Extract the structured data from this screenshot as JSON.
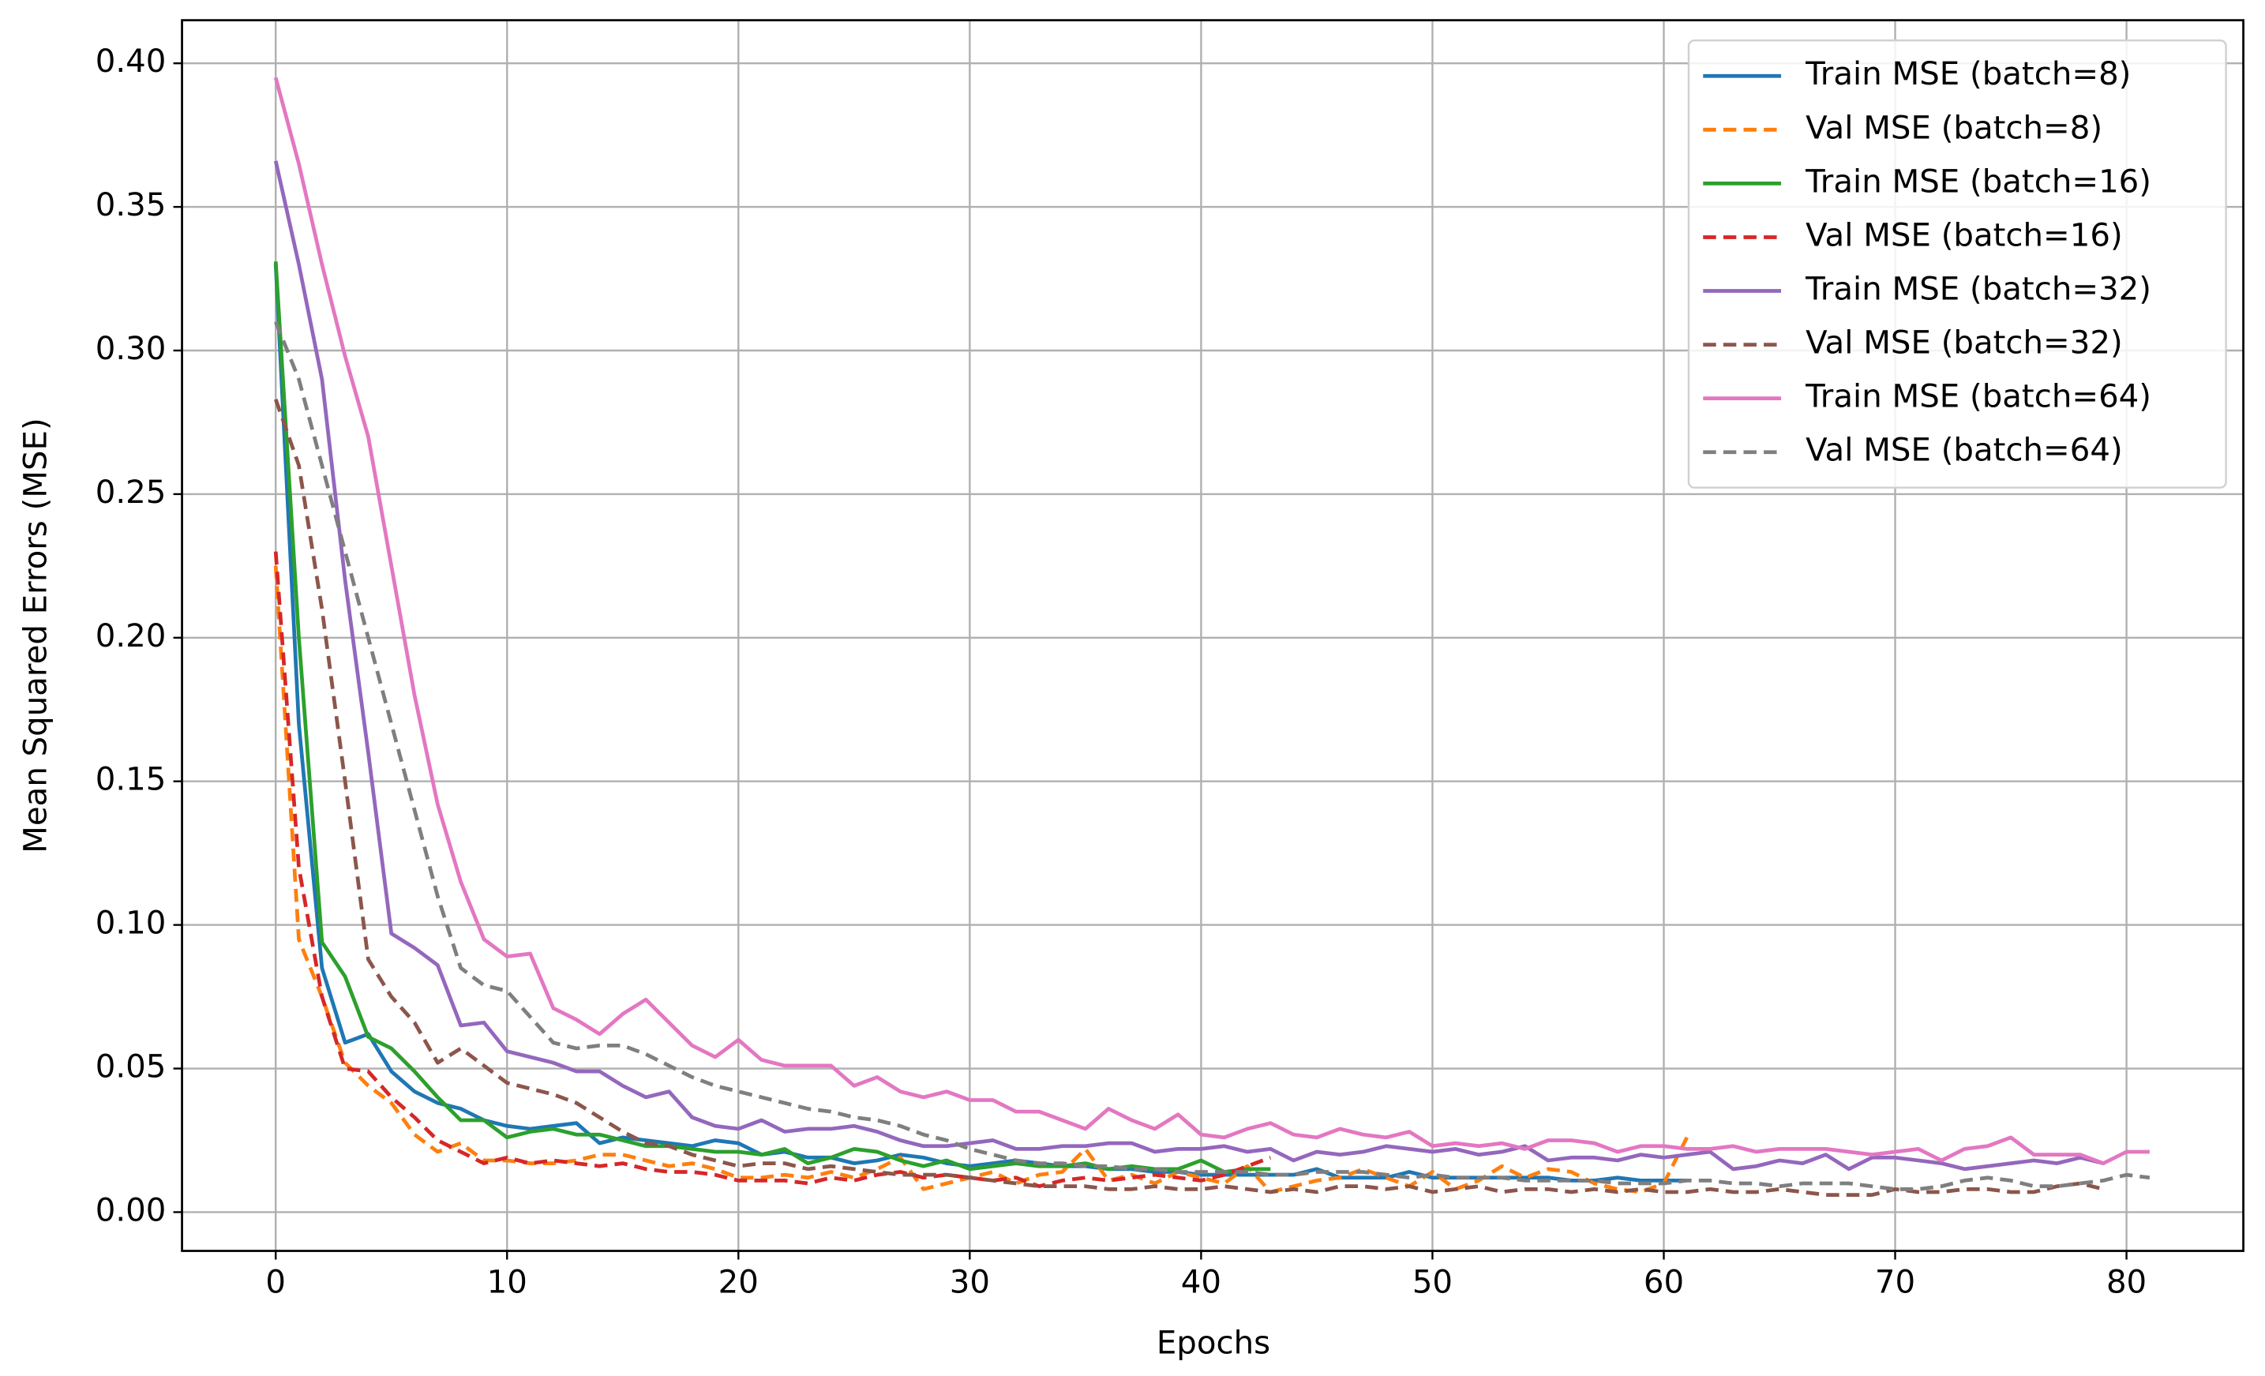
{
  "chart_data": {
    "type": "line",
    "xlabel": "Epochs",
    "ylabel": "Mean Squared Errors (MSE)",
    "xlim": [
      -4.05,
      85.05
    ],
    "ylim": [
      -0.0135,
      0.415
    ],
    "xticks": [
      0,
      10,
      20,
      30,
      40,
      50,
      60,
      70,
      80
    ],
    "yticks": [
      {
        "value": 0,
        "label": "0.00"
      },
      0.05,
      {
        "value": 0.1,
        "label": "0.10"
      },
      0.15,
      {
        "value": 0.2,
        "label": "0.20"
      },
      0.25,
      {
        "value": 0.3,
        "label": "0.30"
      },
      0.35,
      {
        "value": 0.4,
        "label": "0.40"
      }
    ],
    "grid": true,
    "legend": "upper right",
    "series": [
      {
        "name": "Train MSE (batch=8)",
        "color": "#1f77b4",
        "style": "solid",
        "values": [
          0.33,
          0.17,
          0.085,
          0.059,
          0.062,
          0.049,
          0.042,
          0.038,
          0.036,
          0.032,
          0.03,
          0.029,
          0.03,
          0.031,
          0.024,
          0.026,
          0.025,
          0.024,
          0.023,
          0.025,
          0.024,
          0.02,
          0.021,
          0.019,
          0.019,
          0.017,
          0.018,
          0.02,
          0.019,
          0.017,
          0.016,
          0.017,
          0.018,
          0.017,
          0.016,
          0.016,
          0.015,
          0.015,
          0.014,
          0.014,
          0.013,
          0.013,
          0.013,
          0.013,
          0.013,
          0.015,
          0.012,
          0.012,
          0.012,
          0.014,
          0.012,
          0.012,
          0.012,
          0.012,
          0.012,
          0.012,
          0.011,
          0.011,
          0.012,
          0.011,
          0.011,
          0.011
        ]
      },
      {
        "name": "Val MSE (batch=8)",
        "color": "#ff7f0e",
        "style": "dashed",
        "values": [
          0.225,
          0.095,
          0.075,
          0.052,
          0.044,
          0.038,
          0.027,
          0.021,
          0.024,
          0.018,
          0.018,
          0.017,
          0.017,
          0.018,
          0.02,
          0.02,
          0.018,
          0.016,
          0.017,
          0.015,
          0.012,
          0.012,
          0.013,
          0.012,
          0.014,
          0.012,
          0.015,
          0.019,
          0.008,
          0.01,
          0.012,
          0.014,
          0.01,
          0.013,
          0.014,
          0.022,
          0.011,
          0.013,
          0.01,
          0.014,
          0.012,
          0.01,
          0.016,
          0.007,
          0.009,
          0.011,
          0.012,
          0.015,
          0.012,
          0.009,
          0.014,
          0.008,
          0.011,
          0.016,
          0.012,
          0.015,
          0.014,
          0.01,
          0.008,
          0.007,
          0.01,
          0.026
        ]
      },
      {
        "name": "Train MSE (batch=16)",
        "color": "#2ca02c",
        "style": "solid",
        "values": [
          0.331,
          0.2,
          0.094,
          0.082,
          0.061,
          0.057,
          0.049,
          0.04,
          0.032,
          0.032,
          0.026,
          0.028,
          0.029,
          0.027,
          0.027,
          0.025,
          0.023,
          0.023,
          0.022,
          0.021,
          0.021,
          0.02,
          0.022,
          0.017,
          0.019,
          0.022,
          0.021,
          0.018,
          0.016,
          0.018,
          0.015,
          0.016,
          0.017,
          0.016,
          0.016,
          0.017,
          0.015,
          0.016,
          0.015,
          0.015,
          0.018,
          0.014,
          0.015,
          0.015
        ]
      },
      {
        "name": "Val MSE (batch=16)",
        "color": "#d62728",
        "style": "dashed",
        "values": [
          0.23,
          0.12,
          0.075,
          0.05,
          0.049,
          0.04,
          0.033,
          0.025,
          0.021,
          0.017,
          0.019,
          0.017,
          0.018,
          0.017,
          0.016,
          0.017,
          0.015,
          0.014,
          0.014,
          0.013,
          0.011,
          0.011,
          0.011,
          0.01,
          0.012,
          0.011,
          0.013,
          0.014,
          0.012,
          0.013,
          0.012,
          0.011,
          0.012,
          0.009,
          0.011,
          0.012,
          0.011,
          0.012,
          0.013,
          0.012,
          0.011,
          0.013,
          0.016,
          0.019
        ]
      },
      {
        "name": "Train MSE (batch=32)",
        "color": "#9467bd",
        "style": "solid",
        "values": [
          0.366,
          0.33,
          0.29,
          0.22,
          0.16,
          0.097,
          0.092,
          0.086,
          0.065,
          0.066,
          0.056,
          0.054,
          0.052,
          0.049,
          0.049,
          0.044,
          0.04,
          0.042,
          0.033,
          0.03,
          0.029,
          0.032,
          0.028,
          0.029,
          0.029,
          0.03,
          0.028,
          0.025,
          0.023,
          0.023,
          0.024,
          0.025,
          0.022,
          0.022,
          0.023,
          0.023,
          0.024,
          0.024,
          0.021,
          0.022,
          0.022,
          0.023,
          0.021,
          0.022,
          0.018,
          0.021,
          0.02,
          0.021,
          0.023,
          0.022,
          0.021,
          0.022,
          0.02,
          0.021,
          0.023,
          0.018,
          0.019,
          0.019,
          0.018,
          0.02,
          0.019,
          0.02,
          0.021,
          0.015,
          0.016,
          0.018,
          0.017,
          0.02,
          0.015,
          0.019,
          0.019,
          0.018,
          0.017,
          0.015,
          0.016,
          0.017,
          0.018,
          0.017,
          0.019,
          0.017
        ]
      },
      {
        "name": "Val MSE (batch=32)",
        "color": "#8c564b",
        "style": "dashed",
        "values": [
          0.283,
          0.26,
          0.21,
          0.15,
          0.088,
          0.075,
          0.066,
          0.052,
          0.057,
          0.051,
          0.045,
          0.043,
          0.041,
          0.038,
          0.033,
          0.028,
          0.024,
          0.023,
          0.02,
          0.018,
          0.016,
          0.017,
          0.017,
          0.015,
          0.016,
          0.015,
          0.014,
          0.013,
          0.013,
          0.013,
          0.012,
          0.011,
          0.01,
          0.009,
          0.009,
          0.009,
          0.008,
          0.008,
          0.009,
          0.008,
          0.008,
          0.009,
          0.008,
          0.007,
          0.008,
          0.007,
          0.009,
          0.009,
          0.008,
          0.009,
          0.007,
          0.008,
          0.009,
          0.007,
          0.008,
          0.008,
          0.007,
          0.008,
          0.007,
          0.008,
          0.007,
          0.007,
          0.008,
          0.007,
          0.007,
          0.008,
          0.007,
          0.006,
          0.006,
          0.006,
          0.008,
          0.007,
          0.007,
          0.008,
          0.008,
          0.007,
          0.007,
          0.009,
          0.01,
          0.008
        ]
      },
      {
        "name": "Train MSE (batch=64)",
        "color": "#e377c2",
        "style": "solid",
        "values": [
          0.395,
          0.365,
          0.33,
          0.298,
          0.27,
          0.225,
          0.18,
          0.142,
          0.115,
          0.095,
          0.089,
          0.09,
          0.071,
          0.067,
          0.062,
          0.069,
          0.074,
          0.066,
          0.058,
          0.054,
          0.06,
          0.053,
          0.051,
          0.051,
          0.051,
          0.044,
          0.047,
          0.042,
          0.04,
          0.042,
          0.039,
          0.039,
          0.035,
          0.035,
          0.032,
          0.029,
          0.036,
          0.032,
          0.029,
          0.034,
          0.027,
          0.026,
          0.029,
          0.031,
          0.027,
          0.026,
          0.029,
          0.027,
          0.026,
          0.028,
          0.023,
          0.024,
          0.023,
          0.024,
          0.022,
          0.025,
          0.025,
          0.024,
          0.021,
          0.023,
          0.023,
          0.022,
          0.022,
          0.023,
          0.021,
          0.022,
          0.022,
          0.022,
          0.021,
          0.02,
          0.021,
          0.022,
          0.018,
          0.022,
          0.023,
          0.026,
          0.02,
          0.02,
          0.02,
          0.017,
          0.021,
          0.021
        ]
      },
      {
        "name": "Val MSE (batch=64)",
        "color": "#7f7f7f",
        "style": "dashed",
        "values": [
          0.31,
          0.29,
          0.26,
          0.23,
          0.2,
          0.17,
          0.14,
          0.11,
          0.085,
          0.079,
          0.077,
          0.068,
          0.059,
          0.057,
          0.058,
          0.058,
          0.055,
          0.051,
          0.047,
          0.044,
          0.042,
          0.04,
          0.038,
          0.036,
          0.035,
          0.033,
          0.032,
          0.03,
          0.027,
          0.025,
          0.022,
          0.02,
          0.018,
          0.017,
          0.017,
          0.016,
          0.016,
          0.015,
          0.015,
          0.014,
          0.014,
          0.014,
          0.014,
          0.013,
          0.013,
          0.014,
          0.014,
          0.014,
          0.013,
          0.012,
          0.013,
          0.012,
          0.012,
          0.012,
          0.011,
          0.011,
          0.011,
          0.011,
          0.01,
          0.01,
          0.01,
          0.011,
          0.011,
          0.01,
          0.01,
          0.009,
          0.01,
          0.01,
          0.01,
          0.009,
          0.008,
          0.008,
          0.009,
          0.011,
          0.012,
          0.011,
          0.009,
          0.009,
          0.01,
          0.011,
          0.013,
          0.012
        ]
      }
    ]
  }
}
